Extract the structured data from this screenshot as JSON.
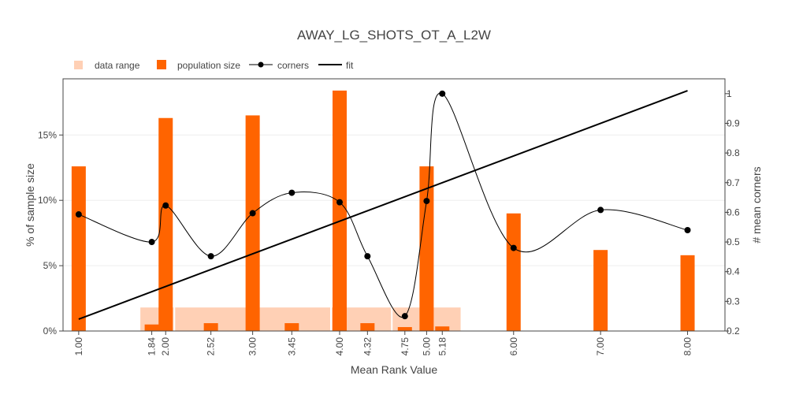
{
  "chart_data": {
    "type": "bar",
    "title": "AWAY_LG_SHOTS_OT_A_L2W",
    "xlabel": "Mean Rank Value",
    "ylabel": "% of sample size",
    "y2label": "# mean corners",
    "legend_position": "top-left",
    "grid": true,
    "xlim": [
      0.82,
      8.43
    ],
    "ylim": [
      0,
      19.3
    ],
    "y2lim": [
      0.2,
      1.05
    ],
    "x_ticks": [
      "1.00",
      "1.84",
      "2.00",
      "2.52",
      "3.00",
      "3.45",
      "4.00",
      "4.32",
      "4.75",
      "5.00",
      "5.18",
      "6.00",
      "7.00",
      "8.00"
    ],
    "y_ticks": [
      "0%",
      "5%",
      "10%",
      "15%"
    ],
    "y2_ticks": [
      "0.2",
      "0.3",
      "0.4",
      "0.5",
      "0.6",
      "0.7",
      "0.8",
      "0.9",
      "1"
    ],
    "series": [
      {
        "name": "data range",
        "color": "#ffd0b5",
        "ranges": [
          {
            "start": 1.7,
            "end": 2.1,
            "value": 1.8
          },
          {
            "start": 2.1,
            "end": 3.9,
            "value": 1.8
          },
          {
            "start": 3.9,
            "end": 4.6,
            "value": 1.8
          },
          {
            "start": 4.6,
            "end": 5.4,
            "value": 1.8
          }
        ]
      },
      {
        "name": "population size",
        "color": "#ff6400",
        "x": [
          1.0,
          1.84,
          2.0,
          2.52,
          3.0,
          3.45,
          4.0,
          4.32,
          4.75,
          5.0,
          5.18,
          6.0,
          7.0,
          8.0
        ],
        "values": [
          12.6,
          0.5,
          16.3,
          0.6,
          16.5,
          0.6,
          18.4,
          0.6,
          0.3,
          12.6,
          0.35,
          9.0,
          6.2,
          5.8
        ]
      },
      {
        "name": "corners",
        "color": "#000000",
        "x": [
          1.0,
          1.84,
          2.0,
          2.52,
          3.0,
          3.45,
          4.0,
          4.32,
          4.75,
          5.0,
          5.18,
          6.0,
          7.0,
          8.0
        ],
        "values": [
          0.593,
          0.5,
          0.623,
          0.452,
          0.597,
          0.666,
          0.634,
          0.452,
          0.25,
          0.638,
          1.0,
          0.48,
          0.608,
          0.54
        ]
      },
      {
        "name": "fit",
        "color": "#000000",
        "x": [
          1.0,
          8.0
        ],
        "values": [
          0.24,
          1.01
        ]
      }
    ]
  }
}
